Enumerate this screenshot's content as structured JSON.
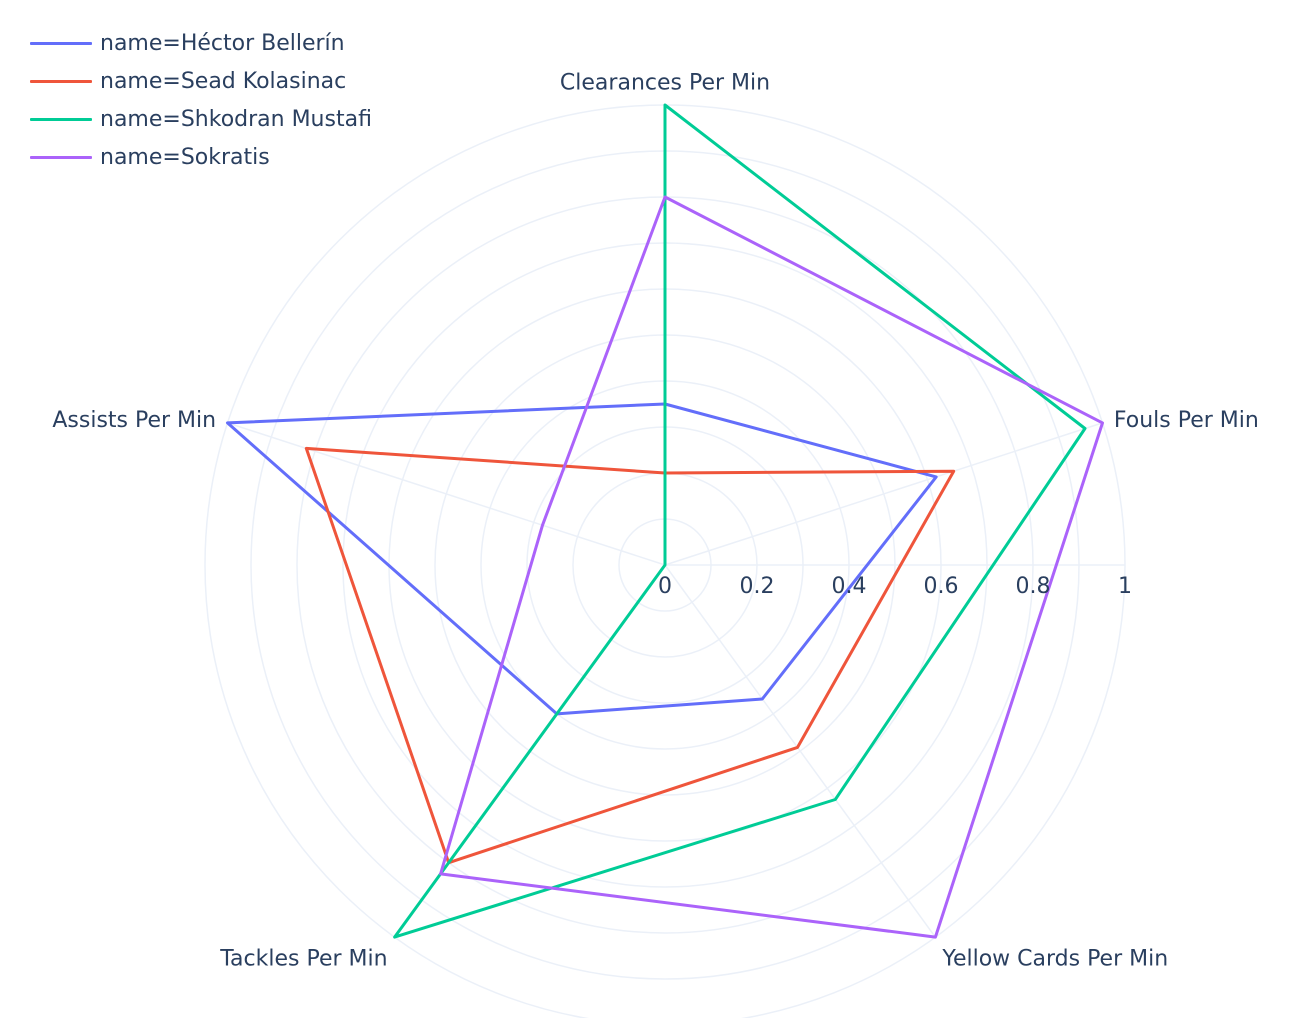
{
  "chart_data": {
    "type": "radar",
    "legend_position": "top-left",
    "axes": [
      "Clearances Per Min",
      "Fouls Per Min",
      "Yellow Cards Per Min",
      "Tackles Per Min",
      "Assists Per Min"
    ],
    "radial_range": [
      0,
      1
    ],
    "radial_ticks": [
      "0",
      "0.2",
      "0.4",
      "0.6",
      "0.8",
      "1"
    ],
    "grid": true,
    "series": [
      {
        "name": "name=Héctor Bellerín",
        "color": "#636efa",
        "values": [
          0.35,
          0.62,
          0.36,
          0.4,
          1.0
        ]
      },
      {
        "name": "name=Sead Kolasinac",
        "color": "#ef553b",
        "values": [
          0.2,
          0.66,
          0.49,
          0.8,
          0.82
        ]
      },
      {
        "name": "name=Shkodran Mustafi",
        "color": "#00cc96",
        "values": [
          1.0,
          0.96,
          0.63,
          1.0,
          0.0
        ]
      },
      {
        "name": "name=Sokratis",
        "color": "#ab63fa",
        "values": [
          0.8,
          1.0,
          1.0,
          0.83,
          0.28
        ]
      }
    ]
  }
}
